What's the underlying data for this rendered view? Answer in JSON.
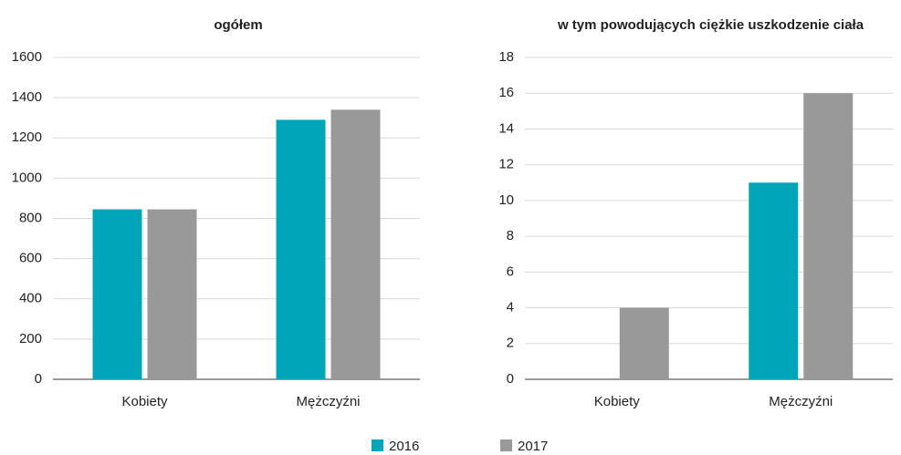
{
  "chart_data": [
    {
      "type": "bar",
      "title": "ogółem",
      "categories": [
        "Kobiety",
        "Mężczyźni"
      ],
      "series": [
        {
          "name": "2016",
          "color": "#00a6b8",
          "values": [
            845,
            1290
          ]
        },
        {
          "name": "2017",
          "color": "#999999",
          "values": [
            845,
            1340
          ]
        }
      ],
      "ylim": [
        0,
        1600
      ],
      "yticks": [
        0,
        200,
        400,
        600,
        800,
        1000,
        1200,
        1400,
        1600
      ],
      "grid": true
    },
    {
      "type": "bar",
      "title": "w tym powodujących ciężkie uszkodzenie ciała",
      "categories": [
        "Kobiety",
        "Mężczyźni"
      ],
      "series": [
        {
          "color": "#00a6b8",
          "values": [
            0,
            11
          ]
        },
        {
          "color": "#999999",
          "values": [
            4,
            16
          ]
        }
      ],
      "ylim": [
        0,
        18
      ],
      "yticks": [
        0,
        2,
        4,
        6,
        8,
        10,
        12,
        14,
        16,
        18
      ],
      "grid": true
    }
  ]
}
